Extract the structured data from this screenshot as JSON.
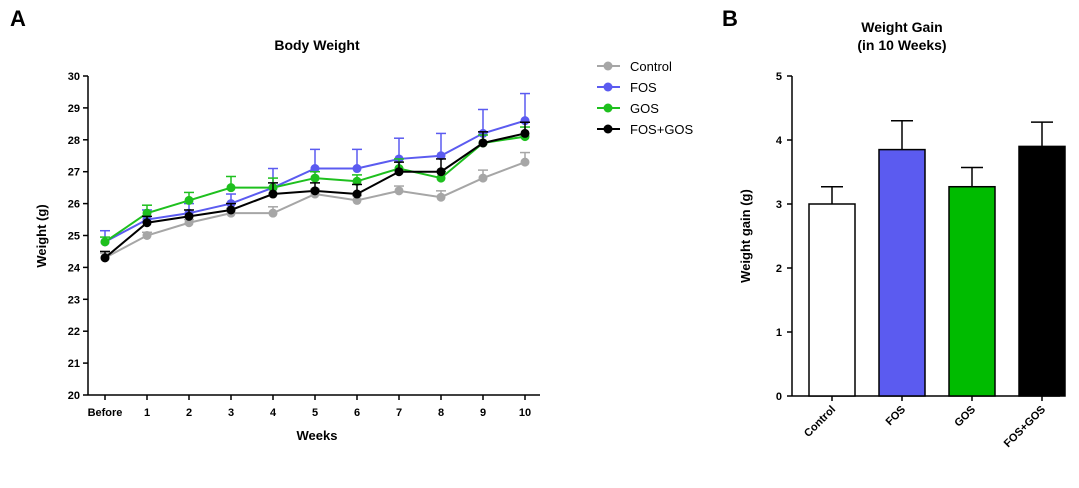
{
  "panels": {
    "a": "A",
    "b": "B"
  },
  "chart_data": [
    {
      "type": "line",
      "title": "Body Weight",
      "xlabel": "Weeks",
      "ylabel": "Weight  (g)",
      "categories": [
        "Before",
        "1",
        "2",
        "3",
        "4",
        "5",
        "6",
        "7",
        "8",
        "9",
        "10"
      ],
      "ylim": [
        20,
        30
      ],
      "yticks": [
        "20",
        "21",
        "22",
        "23",
        "24",
        "25",
        "26",
        "27",
        "28",
        "29",
        "30"
      ],
      "grid": false,
      "legend": "right",
      "series": [
        {
          "name": "Control",
          "color": "#a6a6a6",
          "values": [
            24.3,
            25.0,
            25.4,
            25.7,
            25.7,
            26.3,
            26.1,
            26.4,
            26.2,
            26.8,
            27.3
          ],
          "errors": [
            0.15,
            0.1,
            0.1,
            0.15,
            0.2,
            0.15,
            0.15,
            0.15,
            0.2,
            0.25,
            0.3
          ]
        },
        {
          "name": "FOS",
          "color": "#5b5bf0",
          "values": [
            24.8,
            25.5,
            25.7,
            26.0,
            26.5,
            27.1,
            27.1,
            27.4,
            27.5,
            28.2,
            28.6
          ],
          "errors": [
            0.35,
            0.3,
            0.3,
            0.3,
            0.6,
            0.6,
            0.6,
            0.65,
            0.7,
            0.75,
            0.85
          ]
        },
        {
          "name": "GOS",
          "color": "#1ec01e",
          "values": [
            24.8,
            25.7,
            26.1,
            26.5,
            26.5,
            26.8,
            26.7,
            27.1,
            26.8,
            27.9,
            28.1
          ],
          "errors": [
            0.15,
            0.25,
            0.25,
            0.35,
            0.3,
            0.2,
            0.2,
            0.3,
            0.2,
            0.25,
            0.3
          ]
        },
        {
          "name": "FOS+GOS",
          "color": "#000000",
          "values": [
            24.3,
            25.4,
            25.6,
            25.8,
            26.3,
            26.4,
            26.3,
            27.0,
            27.0,
            27.9,
            28.2
          ],
          "errors": [
            0.2,
            0.2,
            0.2,
            0.2,
            0.35,
            0.25,
            0.3,
            0.3,
            0.4,
            0.35,
            0.35
          ]
        }
      ]
    },
    {
      "type": "bar",
      "title": "Weight Gain",
      "subtitle": "(in 10 Weeks)",
      "xlabel": "",
      "ylabel": "Weight gain (g)",
      "categories": [
        "Control",
        "FOS",
        "GOS",
        "FOS+GOS"
      ],
      "values": [
        3.0,
        3.85,
        3.27,
        3.9
      ],
      "errors": [
        0.27,
        0.45,
        0.3,
        0.38
      ],
      "colors": [
        "#ffffff",
        "#5b5bf0",
        "#00bb00",
        "#000000"
      ],
      "ylim": [
        0,
        5
      ],
      "yticks": [
        "0",
        "1",
        "2",
        "3",
        "4",
        "5"
      ],
      "grid": false
    }
  ]
}
